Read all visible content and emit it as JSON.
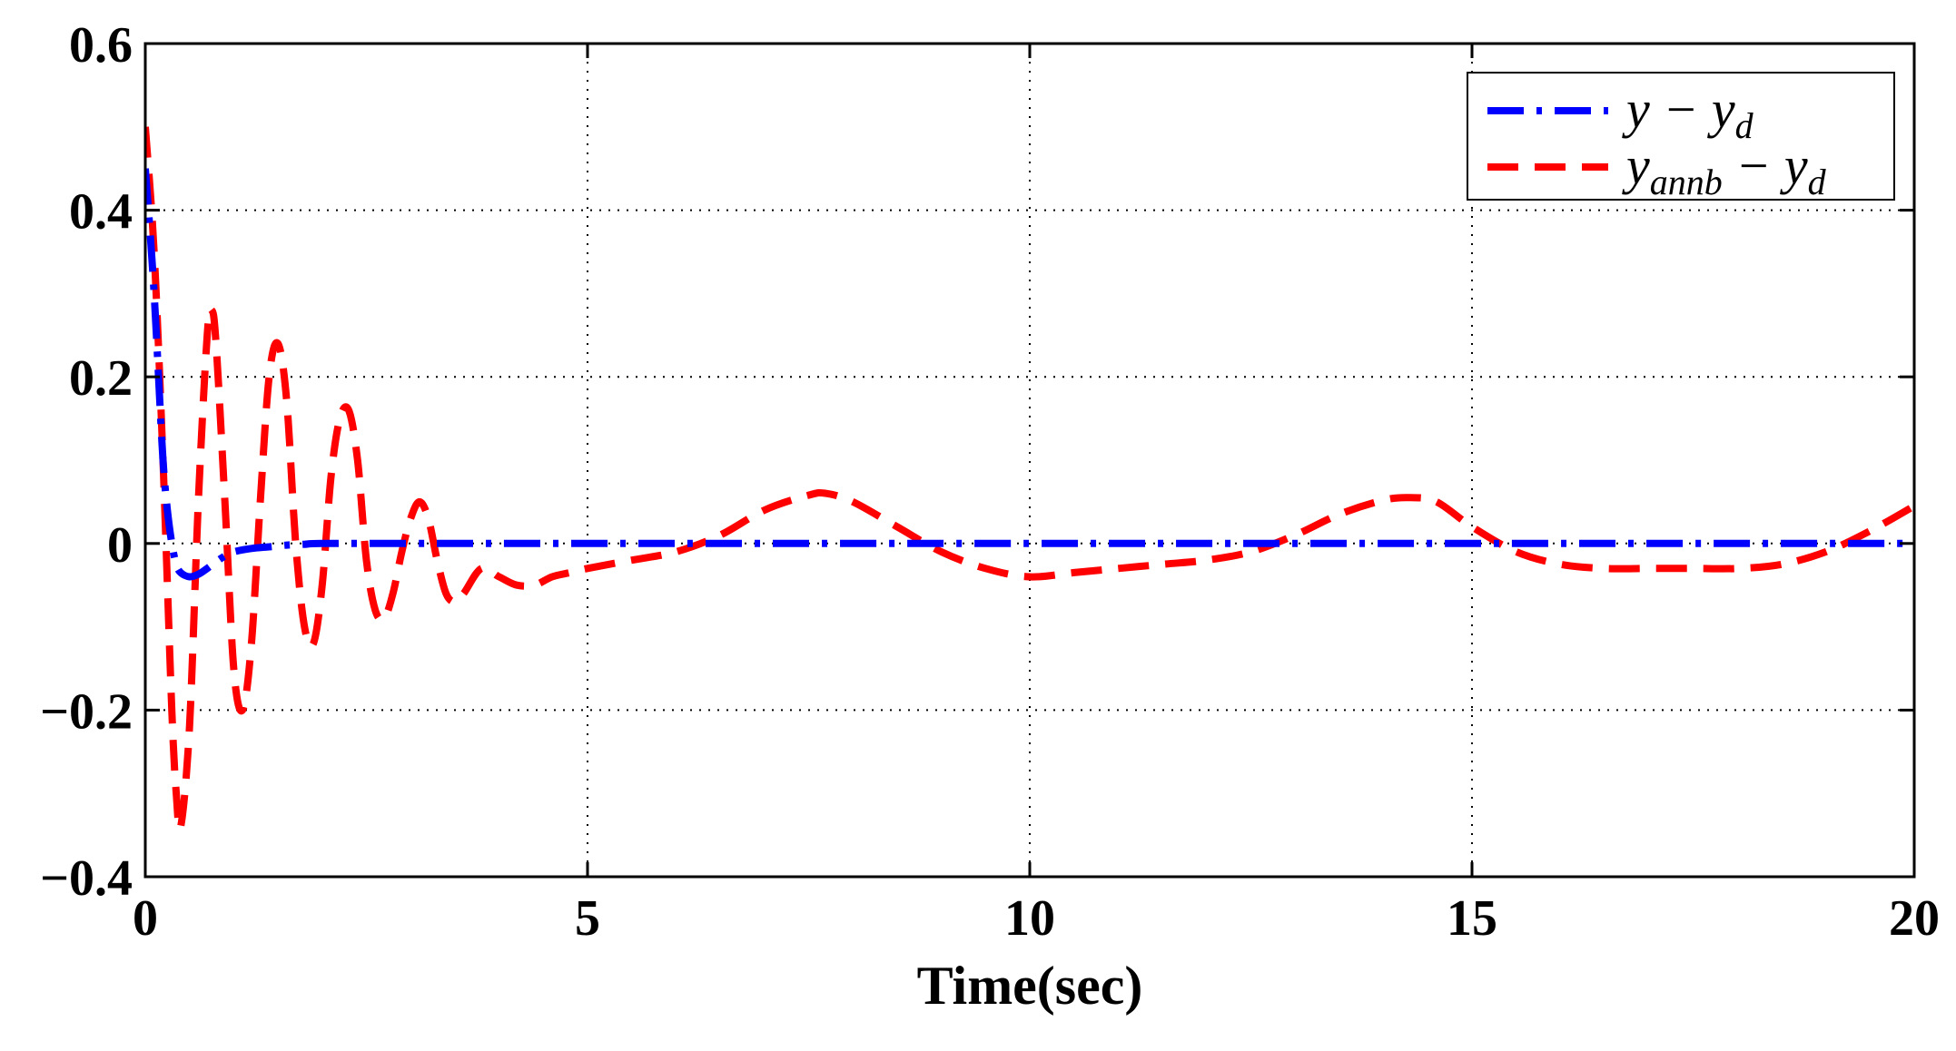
{
  "chart_data": {
    "type": "line",
    "title": "",
    "xlabel": "Time(sec)",
    "ylabel": "",
    "xlim": [
      0,
      20
    ],
    "ylim": [
      -0.4,
      0.6
    ],
    "xticks": [
      0,
      5,
      10,
      15,
      20
    ],
    "xtick_labels": [
      "0",
      "5",
      "10",
      "15",
      "20"
    ],
    "yticks": [
      -0.4,
      -0.2,
      0,
      0.2,
      0.4,
      0.6
    ],
    "ytick_labels": [
      "−0.4",
      "−0.2",
      "0",
      "0.2",
      "0.4",
      "0.6"
    ],
    "grid": true,
    "legend_position": "top-right",
    "series": [
      {
        "name": "y − y_d",
        "legend_main": "y − y",
        "legend_sub": "d",
        "color": "#0000FF",
        "style": "dash-dot",
        "x": [
          0,
          0.05,
          0.1,
          0.15,
          0.2,
          0.25,
          0.3,
          0.35,
          0.4,
          0.5,
          0.6,
          0.7,
          0.8,
          0.9,
          1.0,
          1.2,
          1.4,
          1.6,
          1.8,
          2.0,
          3.0,
          5.0,
          10.0,
          15.0,
          20.0
        ],
        "y": [
          0.45,
          0.38,
          0.3,
          0.2,
          0.1,
          0.04,
          0.0,
          -0.025,
          -0.035,
          -0.04,
          -0.037,
          -0.03,
          -0.022,
          -0.015,
          -0.01,
          -0.006,
          -0.004,
          -0.002,
          -0.001,
          0,
          0,
          0,
          0,
          0,
          0
        ]
      },
      {
        "name": "y_annb − y_d",
        "legend_main": "y",
        "legend_sub": "annb",
        "legend_main2": " − y",
        "legend_sub2": "d",
        "color": "#FF0000",
        "style": "dashed",
        "x": [
          0,
          0.1,
          0.2,
          0.3,
          0.35,
          0.4,
          0.5,
          0.6,
          0.7,
          0.75,
          0.8,
          0.9,
          1.0,
          1.1,
          1.2,
          1.3,
          1.4,
          1.5,
          1.6,
          1.7,
          1.8,
          1.9,
          2.0,
          2.1,
          2.2,
          2.3,
          2.4,
          2.5,
          2.6,
          2.7,
          2.8,
          2.9,
          3.0,
          3.1,
          3.2,
          3.3,
          3.4,
          3.5,
          3.6,
          3.8,
          4.0,
          4.2,
          4.4,
          4.6,
          4.8,
          5.0,
          5.5,
          6.0,
          6.5,
          7.0,
          7.5,
          7.7,
          8.0,
          8.5,
          9.0,
          9.5,
          10.0,
          10.5,
          11.0,
          11.5,
          12.0,
          12.5,
          13.0,
          13.5,
          14.0,
          14.3,
          14.6,
          15.0,
          15.5,
          16.0,
          16.5,
          17.0,
          17.5,
          18.0,
          18.5,
          19.0,
          19.5,
          20.0
        ],
        "y": [
          0.5,
          0.35,
          0.1,
          -0.2,
          -0.3,
          -0.34,
          -0.22,
          0.05,
          0.25,
          0.28,
          0.24,
          0.05,
          -0.15,
          -0.2,
          -0.12,
          0.05,
          0.2,
          0.24,
          0.17,
          0.0,
          -0.1,
          -0.12,
          -0.05,
          0.08,
          0.15,
          0.16,
          0.1,
          -0.02,
          -0.08,
          -0.09,
          -0.06,
          -0.01,
          0.03,
          0.05,
          0.03,
          -0.02,
          -0.06,
          -0.07,
          -0.06,
          -0.03,
          -0.04,
          -0.05,
          -0.05,
          -0.04,
          -0.035,
          -0.03,
          -0.02,
          -0.01,
          0.01,
          0.04,
          0.058,
          0.06,
          0.05,
          0.02,
          -0.01,
          -0.03,
          -0.04,
          -0.035,
          -0.03,
          -0.025,
          -0.02,
          -0.01,
          0.01,
          0.035,
          0.052,
          0.055,
          0.05,
          0.02,
          -0.01,
          -0.025,
          -0.03,
          -0.03,
          -0.03,
          -0.03,
          -0.025,
          -0.01,
          0.015,
          0.045
        ]
      }
    ]
  }
}
